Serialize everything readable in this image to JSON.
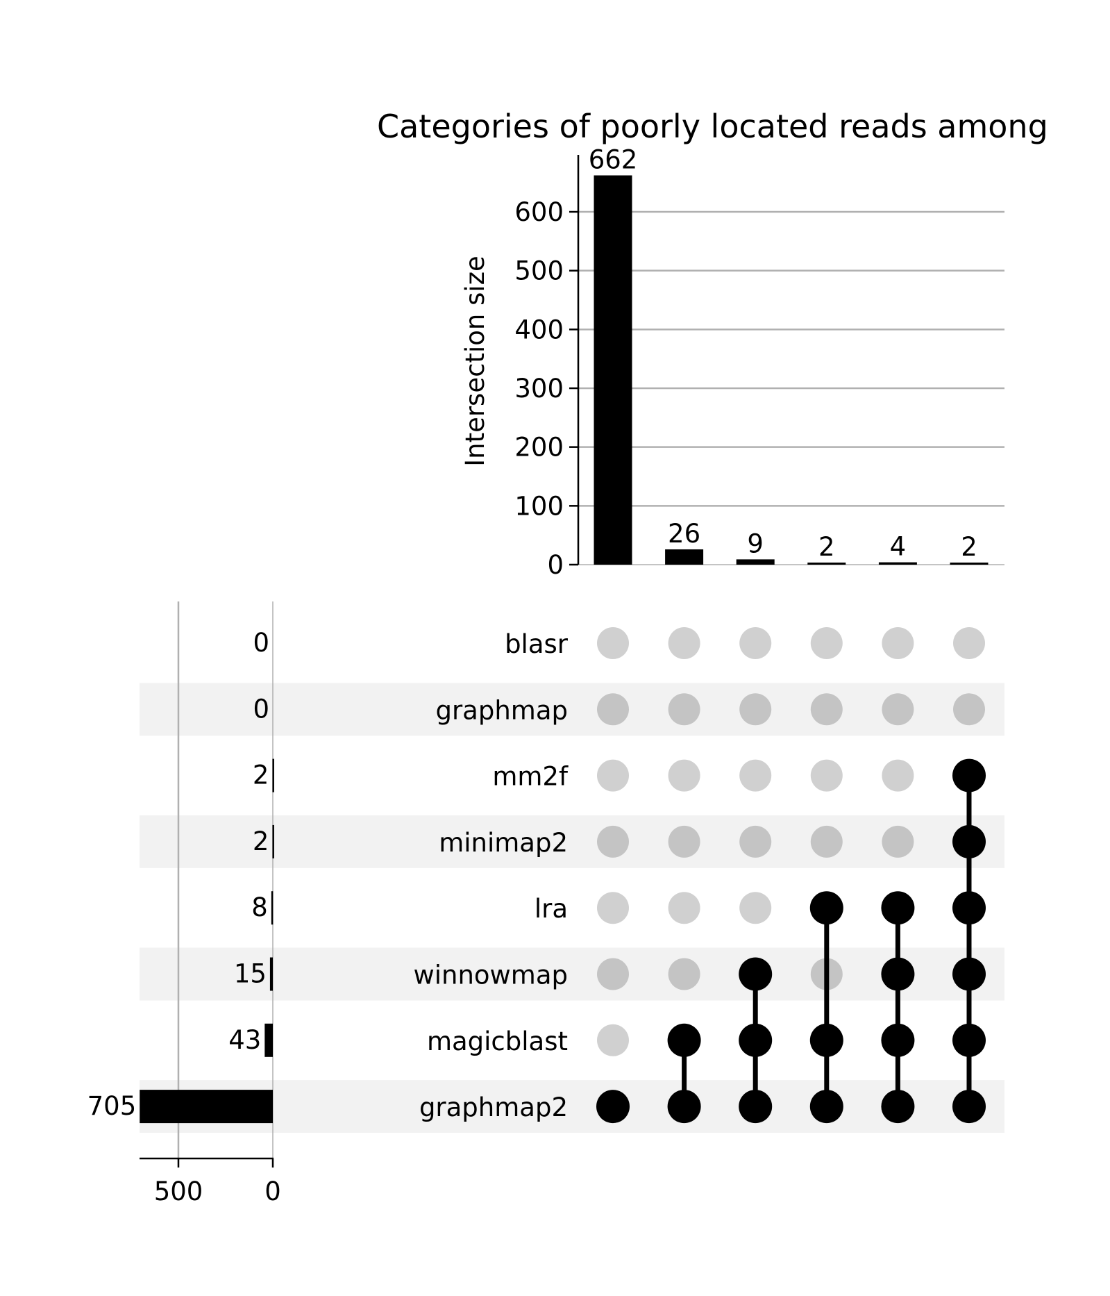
{
  "chart_data": {
    "type": "upset",
    "title": "Categories of poorly located reads among",
    "intersection_axis": {
      "ylabel": "Intersection size",
      "ylim": [
        0,
        695
      ],
      "ticks": [
        0,
        100,
        200,
        300,
        400,
        500,
        600
      ],
      "grid": true
    },
    "sets": [
      {
        "name": "blasr",
        "size": 0,
        "size_label": "0"
      },
      {
        "name": "graphmap",
        "size": 0,
        "size_label": "0"
      },
      {
        "name": "mm2f",
        "size": 2,
        "size_label": "2"
      },
      {
        "name": "minimap2",
        "size": 2,
        "size_label": "2"
      },
      {
        "name": "lra",
        "size": 8,
        "size_label": "8"
      },
      {
        "name": "winnowmap",
        "size": 15,
        "size_label": "15"
      },
      {
        "name": "magicblast",
        "size": 43,
        "size_label": "43"
      },
      {
        "name": "graphmap2",
        "size": 705,
        "size_label": "705"
      }
    ],
    "set_size_axis": {
      "xlim": [
        705,
        0
      ],
      "ticks": [
        500,
        0
      ],
      "tick_labels": [
        "500",
        "0"
      ],
      "grid": true
    },
    "intersections": [
      {
        "value": 662,
        "label": "662",
        "members": [
          "graphmap2"
        ]
      },
      {
        "value": 26,
        "label": "26",
        "members": [
          "magicblast",
          "graphmap2"
        ]
      },
      {
        "value": 9,
        "label": "9",
        "members": [
          "winnowmap",
          "magicblast",
          "graphmap2"
        ]
      },
      {
        "value": 2,
        "label": "2",
        "members": [
          "lra",
          "magicblast",
          "graphmap2"
        ]
      },
      {
        "value": 4,
        "label": "4",
        "members": [
          "lra",
          "winnowmap",
          "magicblast",
          "graphmap2"
        ]
      },
      {
        "value": 2,
        "label": "2",
        "members": [
          "mm2f",
          "minimap2",
          "lra",
          "winnowmap",
          "magicblast",
          "graphmap2"
        ]
      }
    ],
    "colors": {
      "bar": "#000000",
      "dot_active": "#000000",
      "dot_inactive_light": "#d0d0d0",
      "dot_inactive_dark": "#c4c4c4",
      "row_band": "#f2f2f2",
      "grid": "#b0b0b0"
    }
  }
}
